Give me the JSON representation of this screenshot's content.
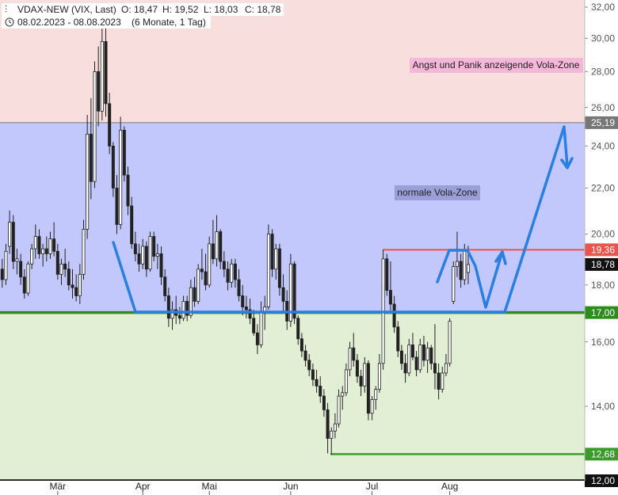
{
  "chart_data": {
    "type": "candlestick",
    "title": "VDAX-NEW (VIX, Last)",
    "quote": [
      "O: 18,47",
      "H: 19,52",
      "L: 18,03",
      "C: 18,78"
    ],
    "subtitle": "08.02.2023 - 08.08.2023",
    "period": "(6 Monate, 1 Tag)",
    "log_scale": true,
    "ylim": [
      12,
      32
    ],
    "yticks": [
      {
        "value": 14,
        "label": "14,00"
      },
      {
        "value": 16,
        "label": "16,00"
      },
      {
        "value": 18,
        "label": "18,00"
      },
      {
        "value": 20,
        "label": "20,00"
      },
      {
        "value": 22,
        "label": "22,00"
      },
      {
        "value": 24,
        "label": "24,00"
      },
      {
        "value": 26,
        "label": "26,00"
      },
      {
        "value": 28,
        "label": "28,00"
      },
      {
        "value": 30,
        "label": "30,00"
      },
      {
        "value": 32,
        "label": "32,00"
      }
    ],
    "xlim": [
      -0.6,
      157.5
    ],
    "xticks": [
      {
        "value": 15,
        "label": "Mär"
      },
      {
        "value": 38,
        "label": "Apr"
      },
      {
        "value": 56,
        "label": "Mai"
      },
      {
        "value": 78,
        "label": "Jun"
      },
      {
        "value": 100,
        "label": "Jul"
      },
      {
        "value": 121,
        "label": "Aug"
      }
    ],
    "up_color": "#ffffff",
    "down_color": "#222222",
    "zones": [
      {
        "from": 25.19,
        "to": 32,
        "color": "#f9dede"
      },
      {
        "from": 17,
        "to": 25.19,
        "color": "#c2c8fb"
      },
      {
        "from": 12,
        "to": 17,
        "color": "#e2efd4"
      }
    ],
    "levels": [
      {
        "value": 25.19,
        "label": "25,19",
        "color": "#777777"
      },
      {
        "value": 19.36,
        "label": "19,36",
        "color": "#e8554e"
      },
      {
        "value": 18.78,
        "label": "18,78",
        "color": "#111111"
      },
      {
        "value": 17,
        "label": "17,00",
        "color": "#2e8b1e"
      },
      {
        "value": 12.68,
        "label": "12,68",
        "color": "#3a9a2a"
      },
      {
        "value": 12,
        "label": "12,00",
        "color": "#111111"
      }
    ],
    "annotations": [
      "Angst und Panik anzeigende Vola-Zone",
      "normale Vola-Zone"
    ],
    "ohlc": [
      [
        18.6,
        19.0,
        17.9,
        18.2
      ],
      [
        18.2,
        19.6,
        18.0,
        19.3
      ],
      [
        19.5,
        21.0,
        19.2,
        20.5
      ],
      [
        20.5,
        20.8,
        18.6,
        18.9
      ],
      [
        18.9,
        19.4,
        18.4,
        19.0
      ],
      [
        18.9,
        19.2,
        18.0,
        18.3
      ],
      [
        18.3,
        18.6,
        17.5,
        17.7
      ],
      [
        17.7,
        18.9,
        17.6,
        18.8
      ],
      [
        18.8,
        19.6,
        18.6,
        19.4
      ],
      [
        19.4,
        20.4,
        19.0,
        19.9
      ],
      [
        19.9,
        20.2,
        19.0,
        19.2
      ],
      [
        19.2,
        19.6,
        18.7,
        19.4
      ],
      [
        19.4,
        19.9,
        18.9,
        19.2
      ],
      [
        19.2,
        20.1,
        19.0,
        19.8
      ],
      [
        19.8,
        20.5,
        19.1,
        19.3
      ],
      [
        19.3,
        19.6,
        18.2,
        18.4
      ],
      [
        18.4,
        19.0,
        18.0,
        18.8
      ],
      [
        18.8,
        19.4,
        18.3,
        18.6
      ],
      [
        18.6,
        18.9,
        17.8,
        18.0
      ],
      [
        18.0,
        18.6,
        17.5,
        17.9
      ],
      [
        17.9,
        18.4,
        17.4,
        17.6
      ],
      [
        17.6,
        18.8,
        17.3,
        18.4
      ],
      [
        18.4,
        20.6,
        18.2,
        20.2
      ],
      [
        20.2,
        25.6,
        19.8,
        24.6
      ],
      [
        24.6,
        26.5,
        21.5,
        22.3
      ],
      [
        22.3,
        28.6,
        22.0,
        28.0
      ],
      [
        28.0,
        29.5,
        25.0,
        25.8
      ],
      [
        25.8,
        30.6,
        25.3,
        29.8
      ],
      [
        29.8,
        31.8,
        25.5,
        26.2
      ],
      [
        26.2,
        26.8,
        23.6,
        24.0
      ],
      [
        24.0,
        24.2,
        21.6,
        22.0
      ],
      [
        22.0,
        22.6,
        20.0,
        20.4
      ],
      [
        20.4,
        25.5,
        20.2,
        24.8
      ],
      [
        24.8,
        25.0,
        22.3,
        22.6
      ],
      [
        22.6,
        23.0,
        20.8,
        21.2
      ],
      [
        21.2,
        21.6,
        19.4,
        19.6
      ],
      [
        19.6,
        20.1,
        18.9,
        19.2
      ],
      [
        19.2,
        19.6,
        18.5,
        18.8
      ],
      [
        18.8,
        19.8,
        18.6,
        19.5
      ],
      [
        19.5,
        19.7,
        18.3,
        18.6
      ],
      [
        18.6,
        20.1,
        18.5,
        19.9
      ],
      [
        19.9,
        20.1,
        18.9,
        19.1
      ],
      [
        19.1,
        19.6,
        18.6,
        19.2
      ],
      [
        19.2,
        19.5,
        18.0,
        18.3
      ],
      [
        18.3,
        18.6,
        17.4,
        17.6
      ],
      [
        17.6,
        17.9,
        16.5,
        16.8
      ],
      [
        16.8,
        17.4,
        16.4,
        17.1
      ],
      [
        17.1,
        17.6,
        16.6,
        16.9
      ],
      [
        16.9,
        17.2,
        16.6,
        16.8
      ],
      [
        16.8,
        17.6,
        16.7,
        17.4
      ],
      [
        17.4,
        17.6,
        16.7,
        16.9
      ],
      [
        16.9,
        18.2,
        16.8,
        17.9
      ],
      [
        17.9,
        18.3,
        17.2,
        17.4
      ],
      [
        17.4,
        18.8,
        17.3,
        18.6
      ],
      [
        18.6,
        19.4,
        18.2,
        18.5
      ],
      [
        18.5,
        19.2,
        17.8,
        18.0
      ],
      [
        18.0,
        19.9,
        17.9,
        19.6
      ],
      [
        19.6,
        20.6,
        18.8,
        19.0
      ],
      [
        19.0,
        20.8,
        18.7,
        20.1
      ],
      [
        20.1,
        20.2,
        18.6,
        18.9
      ],
      [
        18.9,
        19.3,
        18.3,
        18.6
      ],
      [
        18.6,
        18.9,
        17.8,
        18.1
      ],
      [
        18.1,
        19.0,
        17.9,
        18.8
      ],
      [
        18.8,
        19.0,
        17.9,
        18.2
      ],
      [
        18.2,
        18.6,
        17.4,
        17.6
      ],
      [
        17.6,
        18.0,
        16.9,
        17.2
      ],
      [
        17.2,
        17.6,
        16.8,
        17.1
      ],
      [
        17.1,
        17.5,
        16.6,
        16.8
      ],
      [
        16.8,
        17.1,
        16.2,
        16.3
      ],
      [
        16.3,
        16.6,
        15.6,
        15.9
      ],
      [
        15.9,
        17.4,
        15.8,
        17.0
      ],
      [
        17.0,
        17.6,
        16.4,
        17.2
      ],
      [
        17.2,
        20.4,
        17.1,
        20.0
      ],
      [
        20.0,
        20.2,
        18.3,
        18.6
      ],
      [
        18.6,
        19.6,
        18.2,
        19.4
      ],
      [
        19.4,
        19.6,
        17.6,
        17.9
      ],
      [
        17.9,
        18.4,
        17.0,
        17.4
      ],
      [
        17.4,
        17.8,
        16.4,
        16.7
      ],
      [
        16.7,
        19.2,
        16.5,
        18.8
      ],
      [
        18.8,
        18.9,
        16.6,
        16.8
      ],
      [
        16.8,
        16.9,
        15.9,
        16.1
      ],
      [
        16.1,
        16.3,
        15.5,
        15.7
      ],
      [
        15.7,
        15.9,
        15.2,
        15.4
      ],
      [
        15.4,
        15.6,
        14.9,
        15.1
      ],
      [
        15.1,
        15.3,
        14.6,
        14.8
      ],
      [
        14.8,
        15.1,
        14.4,
        14.6
      ],
      [
        14.6,
        14.9,
        14.1,
        14.3
      ],
      [
        14.3,
        14.5,
        13.7,
        13.9
      ],
      [
        13.9,
        14.1,
        12.7,
        13.1
      ],
      [
        13.1,
        13.4,
        12.68,
        13.3
      ],
      [
        13.3,
        13.8,
        13.1,
        13.5
      ],
      [
        13.5,
        14.5,
        13.4,
        14.3
      ],
      [
        14.3,
        14.6,
        13.9,
        14.4
      ],
      [
        14.4,
        15.3,
        14.3,
        15.1
      ],
      [
        15.1,
        16.0,
        14.9,
        15.8
      ],
      [
        15.8,
        16.3,
        15.2,
        15.4
      ],
      [
        15.4,
        15.6,
        14.7,
        14.9
      ],
      [
        14.9,
        15.1,
        14.3,
        14.6
      ],
      [
        14.6,
        15.5,
        14.4,
        15.3
      ],
      [
        15.3,
        15.4,
        13.6,
        13.8
      ],
      [
        13.8,
        14.3,
        13.6,
        14.2
      ],
      [
        14.2,
        14.6,
        13.9,
        14.5
      ],
      [
        14.5,
        15.6,
        14.4,
        15.3
      ],
      [
        15.3,
        19.36,
        15.1,
        19.0
      ],
      [
        19.0,
        19.2,
        17.6,
        17.8
      ],
      [
        17.8,
        18.9,
        17.0,
        17.3
      ],
      [
        17.3,
        17.6,
        16.3,
        16.5
      ],
      [
        16.5,
        16.7,
        15.5,
        15.7
      ],
      [
        15.7,
        15.9,
        15.1,
        15.3
      ],
      [
        15.3,
        15.6,
        14.7,
        15.0
      ],
      [
        15.0,
        16.1,
        14.9,
        15.9
      ],
      [
        15.9,
        16.3,
        15.4,
        15.5
      ],
      [
        15.5,
        15.7,
        14.9,
        15.1
      ],
      [
        15.1,
        16.1,
        15.0,
        15.9
      ],
      [
        15.9,
        16.2,
        15.2,
        15.4
      ],
      [
        15.4,
        16.0,
        15.0,
        15.8
      ],
      [
        15.8,
        15.9,
        15.1,
        15.3
      ],
      [
        15.3,
        16.6,
        14.5,
        15.0
      ],
      [
        15.0,
        15.3,
        14.2,
        14.5
      ],
      [
        14.5,
        15.2,
        14.4,
        15.0
      ],
      [
        15.0,
        15.6,
        14.9,
        15.3
      ],
      [
        15.3,
        16.8,
        15.2,
        16.7
      ],
      [
        17.4,
        18.9,
        17.3,
        18.7
      ],
      [
        18.7,
        20.1,
        18.3,
        18.9
      ],
      [
        18.9,
        19.2,
        17.9,
        18.2
      ],
      [
        18.2,
        19.6,
        18.0,
        19.3
      ],
      [
        18.47,
        19.52,
        18.03,
        18.78
      ]
    ]
  }
}
